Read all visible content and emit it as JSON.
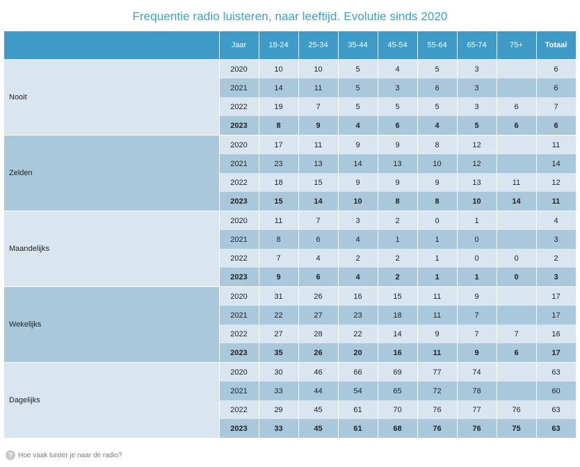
{
  "title": "Frequentie radio luisteren, naar leeftijd. Evolutie sinds 2020",
  "headers": [
    "Jaar",
    "18-24",
    "25-34",
    "35-44",
    "45-54",
    "55-64",
    "65-74",
    "75+",
    "Totaal"
  ],
  "groups": [
    {
      "label": "Nooit",
      "rows": [
        [
          "2020",
          "10",
          "10",
          "5",
          "4",
          "5",
          "3",
          "",
          "6"
        ],
        [
          "2021",
          "14",
          "11",
          "5",
          "3",
          "6",
          "3",
          "",
          "6"
        ],
        [
          "2022",
          "19",
          "7",
          "5",
          "5",
          "5",
          "3",
          "6",
          "7"
        ],
        [
          "2023",
          "8",
          "9",
          "4",
          "6",
          "4",
          "5",
          "6",
          "6"
        ]
      ]
    },
    {
      "label": "Zelden",
      "rows": [
        [
          "2020",
          "17",
          "11",
          "9",
          "9",
          "8",
          "12",
          "",
          "11"
        ],
        [
          "2021",
          "23",
          "13",
          "14",
          "13",
          "10",
          "12",
          "",
          "14"
        ],
        [
          "2022",
          "18",
          "15",
          "9",
          "9",
          "9",
          "13",
          "11",
          "12"
        ],
        [
          "2023",
          "15",
          "14",
          "10",
          "8",
          "8",
          "10",
          "14",
          "11"
        ]
      ]
    },
    {
      "label": "Maandelijks",
      "rows": [
        [
          "2020",
          "11",
          "7",
          "3",
          "2",
          "0",
          "1",
          "",
          "4"
        ],
        [
          "2021",
          "8",
          "6",
          "4",
          "1",
          "1",
          "0",
          "",
          "3"
        ],
        [
          "2022",
          "7",
          "4",
          "2",
          "2",
          "1",
          "0",
          "0",
          "2"
        ],
        [
          "2023",
          "9",
          "6",
          "4",
          "2",
          "1",
          "1",
          "0",
          "3"
        ]
      ]
    },
    {
      "label": "Wekelijks",
      "rows": [
        [
          "2020",
          "31",
          "26",
          "16",
          "15",
          "11",
          "9",
          "",
          "17"
        ],
        [
          "2021",
          "22",
          "27",
          "23",
          "18",
          "11",
          "7",
          "",
          "17"
        ],
        [
          "2022",
          "27",
          "28",
          "22",
          "14",
          "9",
          "7",
          "7",
          "16"
        ],
        [
          "2023",
          "35",
          "26",
          "20",
          "16",
          "11",
          "9",
          "6",
          "17"
        ]
      ]
    },
    {
      "label": "Dagelijks",
      "rows": [
        [
          "2020",
          "30",
          "46",
          "66",
          "69",
          "77",
          "74",
          "",
          "63"
        ],
        [
          "2021",
          "33",
          "44",
          "54",
          "65",
          "72",
          "78",
          "",
          "60"
        ],
        [
          "2022",
          "29",
          "45",
          "61",
          "70",
          "76",
          "77",
          "76",
          "63"
        ],
        [
          "2023",
          "33",
          "45",
          "61",
          "68",
          "76",
          "76",
          "75",
          "63"
        ]
      ]
    }
  ],
  "footer": {
    "icon": "question-icon",
    "text": "Hoe vaak luister je naar de radio?"
  },
  "colors": {
    "header": "#3e9bc8",
    "light": "#d9e5ef",
    "dark": "#a9c8dc",
    "title": "#3aa0c8"
  }
}
